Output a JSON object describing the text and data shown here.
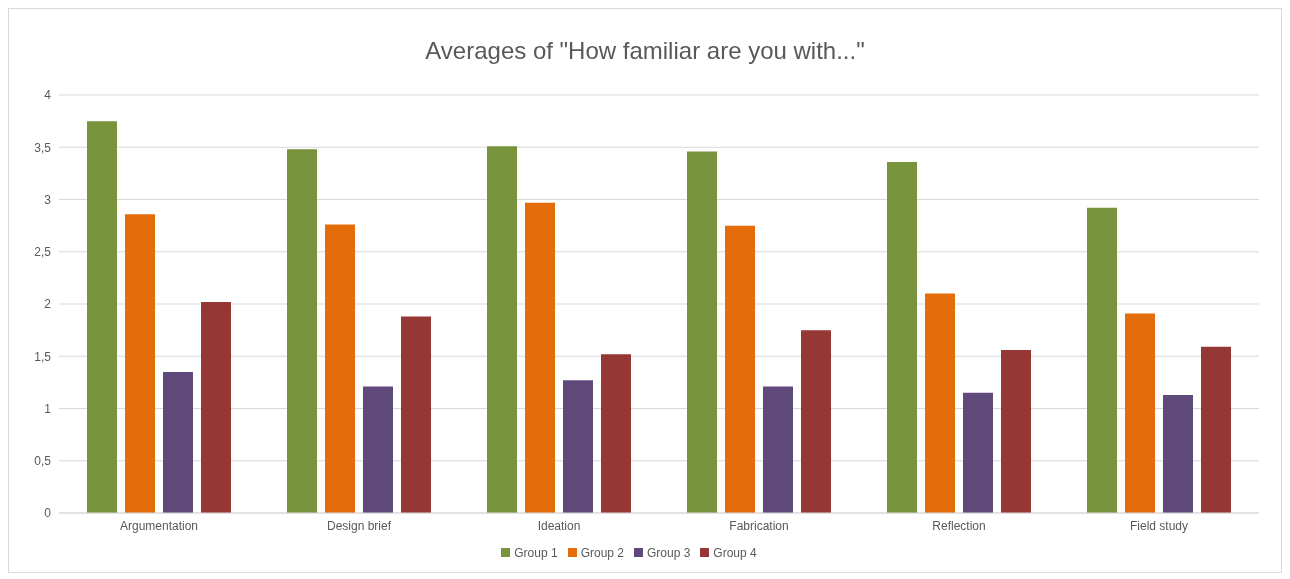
{
  "chart_data": {
    "type": "bar",
    "title": "Averages of \"How familiar are you with...\"",
    "categories": [
      "Argumentation",
      "Design brief",
      "Ideation",
      "Fabrication",
      "Reflection",
      "Field study"
    ],
    "series": [
      {
        "name": "Group 1",
        "color": "#77933c",
        "values": [
          3.75,
          3.48,
          3.51,
          3.46,
          3.36,
          2.92
        ]
      },
      {
        "name": "Group 2",
        "color": "#e46c0a",
        "values": [
          2.86,
          2.76,
          2.97,
          2.75,
          2.1,
          1.91
        ]
      },
      {
        "name": "Group 3",
        "color": "#604a7b",
        "values": [
          1.35,
          1.21,
          1.27,
          1.21,
          1.15,
          1.13
        ]
      },
      {
        "name": "Group 4",
        "color": "#953735",
        "values": [
          2.02,
          1.88,
          1.52,
          1.75,
          1.56,
          1.59
        ]
      }
    ],
    "ylim": [
      0,
      4
    ],
    "yticks": [
      0,
      {
        "value": 0.5,
        "label": "0,5"
      },
      1,
      {
        "value": 1.5,
        "label": "1,5"
      },
      2,
      {
        "value": 2.5,
        "label": "2,5"
      },
      3,
      {
        "value": 3.5,
        "label": "3,5"
      },
      4
    ],
    "grid": "y",
    "legend": "bottom"
  }
}
